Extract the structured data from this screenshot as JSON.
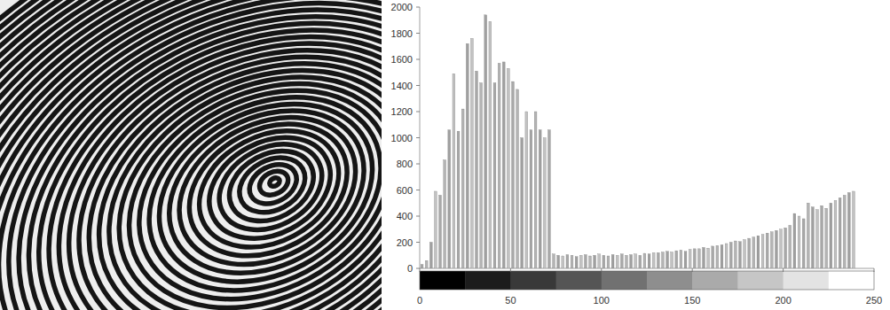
{
  "chart_data": {
    "type": "histogram",
    "bins": [
      0,
      2.5,
      5,
      7.5,
      10,
      12.5,
      15,
      17.5,
      20,
      22.5,
      25,
      27.5,
      30,
      32.5,
      35,
      37.5,
      40,
      42.5,
      45,
      47.5,
      50,
      52.5,
      55,
      57.5,
      60,
      62.5,
      65,
      67.5,
      70,
      72.5,
      75,
      77.5,
      80,
      82.5,
      85,
      87.5,
      90,
      92.5,
      95,
      97.5,
      100,
      102.5,
      105,
      107.5,
      110,
      112.5,
      115,
      117.5,
      120,
      122.5,
      125,
      127.5,
      130,
      132.5,
      135,
      137.5,
      140,
      142.5,
      145,
      147.5,
      150,
      152.5,
      155,
      157.5,
      160,
      162.5,
      165,
      167.5,
      170,
      172.5,
      175,
      177.5,
      180,
      182.5,
      185,
      187.5,
      190,
      192.5,
      195,
      197.5,
      200,
      202.5,
      205,
      207.5,
      210,
      212.5,
      215,
      217.5,
      220,
      222.5,
      225,
      227.5,
      230,
      232.5,
      235,
      237.5,
      240
    ],
    "values": [
      30,
      60,
      200,
      590,
      560,
      830,
      1060,
      1490,
      1050,
      1220,
      1720,
      1760,
      1510,
      1420,
      1940,
      1890,
      1420,
      1570,
      1580,
      1530,
      1430,
      1370,
      1000,
      1200,
      1060,
      1200,
      1060,
      1000,
      1060,
      110,
      100,
      95,
      105,
      100,
      90,
      100,
      105,
      95,
      100,
      110,
      100,
      95,
      105,
      100,
      110,
      100,
      105,
      110,
      100,
      115,
      110,
      120,
      120,
      125,
      130,
      125,
      135,
      140,
      130,
      145,
      150,
      150,
      160,
      155,
      170,
      175,
      180,
      190,
      200,
      210,
      205,
      220,
      230,
      240,
      250,
      260,
      270,
      280,
      290,
      300,
      310,
      330,
      420,
      400,
      380,
      500,
      470,
      450,
      480,
      460,
      500,
      520,
      540,
      560,
      580,
      590
    ],
    "color": "#a8a8a8",
    "xlim": [
      0,
      250
    ],
    "ylim": [
      0,
      2000
    ],
    "xticks": [
      0,
      50,
      100,
      150,
      200,
      250
    ],
    "yticks": [
      0,
      200,
      400,
      600,
      800,
      1000,
      1200,
      1400,
      1600,
      1800,
      2000
    ],
    "grid": false
  }
}
